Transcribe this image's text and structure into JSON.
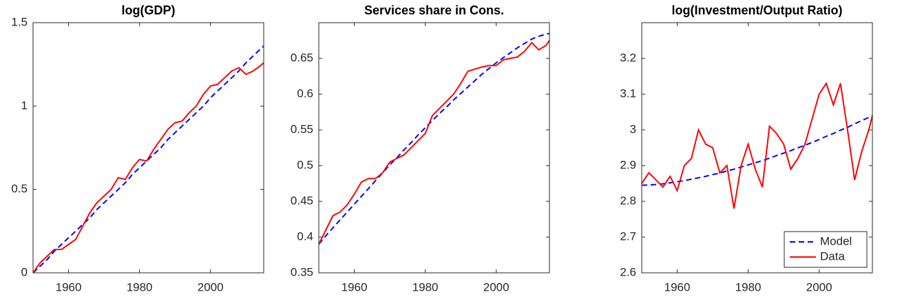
{
  "chart_data": [
    {
      "type": "line",
      "title": "log(GDP)",
      "x": [
        1950,
        1952,
        1954,
        1956,
        1958,
        1960,
        1962,
        1964,
        1966,
        1968,
        1970,
        1972,
        1974,
        1976,
        1978,
        1980,
        1982,
        1984,
        1986,
        1988,
        1990,
        1992,
        1994,
        1996,
        1998,
        2000,
        2002,
        2004,
        2006,
        2008,
        2010,
        2012,
        2014,
        2015
      ],
      "xlim": [
        1950,
        2015
      ],
      "xticks": [
        1960,
        1980,
        2000
      ],
      "ylim": [
        0,
        1.5
      ],
      "yticks": [
        0,
        0.5,
        1,
        1.5
      ],
      "series": [
        {
          "name": "Model",
          "color": "#0000ff",
          "line_style": "dashed",
          "values": [
            0,
            0.04,
            0.08,
            0.13,
            0.17,
            0.21,
            0.25,
            0.29,
            0.33,
            0.38,
            0.42,
            0.46,
            0.5,
            0.54,
            0.59,
            0.63,
            0.67,
            0.71,
            0.75,
            0.8,
            0.84,
            0.88,
            0.92,
            0.96,
            1.0,
            1.05,
            1.09,
            1.13,
            1.17,
            1.21,
            1.26,
            1.3,
            1.34,
            1.36
          ]
        },
        {
          "name": "Data",
          "color": "#ff0000",
          "line_style": "solid",
          "values": [
            0,
            0.06,
            0.1,
            0.14,
            0.14,
            0.17,
            0.2,
            0.28,
            0.36,
            0.42,
            0.46,
            0.5,
            0.57,
            0.56,
            0.63,
            0.68,
            0.67,
            0.74,
            0.8,
            0.86,
            0.9,
            0.91,
            0.96,
            1.0,
            1.07,
            1.12,
            1.13,
            1.17,
            1.21,
            1.23,
            1.19,
            1.21,
            1.24,
            1.26
          ]
        }
      ]
    },
    {
      "type": "line",
      "title": "Services share in Cons.",
      "x": [
        1950,
        1952,
        1954,
        1956,
        1958,
        1960,
        1962,
        1964,
        1966,
        1968,
        1970,
        1972,
        1974,
        1976,
        1978,
        1980,
        1982,
        1984,
        1986,
        1988,
        1990,
        1992,
        1994,
        1996,
        1998,
        2000,
        2002,
        2004,
        2006,
        2008,
        2010,
        2012,
        2014,
        2015
      ],
      "xlim": [
        1950,
        2015
      ],
      "xticks": [
        1960,
        1980,
        2000
      ],
      "ylim": [
        0.35,
        0.7
      ],
      "yticks": [
        0.35,
        0.4,
        0.45,
        0.5,
        0.55,
        0.6,
        0.65
      ],
      "series": [
        {
          "name": "Model",
          "color": "#0000ff",
          "line_style": "dashed",
          "values": [
            0.39,
            0.402,
            0.413,
            0.424,
            0.435,
            0.446,
            0.457,
            0.468,
            0.479,
            0.49,
            0.501,
            0.511,
            0.522,
            0.532,
            0.543,
            0.553,
            0.563,
            0.573,
            0.582,
            0.592,
            0.601,
            0.61,
            0.619,
            0.628,
            0.636,
            0.644,
            0.651,
            0.658,
            0.665,
            0.671,
            0.677,
            0.681,
            0.684,
            0.685
          ]
        },
        {
          "name": "Data",
          "color": "#ff0000",
          "line_style": "solid",
          "values": [
            0.39,
            0.41,
            0.43,
            0.435,
            0.445,
            0.46,
            0.477,
            0.482,
            0.482,
            0.49,
            0.505,
            0.51,
            0.515,
            0.525,
            0.535,
            0.545,
            0.57,
            0.58,
            0.59,
            0.6,
            0.615,
            0.632,
            0.635,
            0.638,
            0.64,
            0.64,
            0.648,
            0.65,
            0.652,
            0.66,
            0.672,
            0.662,
            0.668,
            0.675
          ]
        }
      ]
    },
    {
      "type": "line",
      "title": "log(Investment/Output Ratio)",
      "x": [
        1950,
        1952,
        1954,
        1956,
        1958,
        1960,
        1962,
        1964,
        1966,
        1968,
        1970,
        1972,
        1974,
        1976,
        1978,
        1980,
        1982,
        1984,
        1986,
        1988,
        1990,
        1992,
        1994,
        1996,
        1998,
        2000,
        2002,
        2004,
        2006,
        2008,
        2010,
        2012,
        2014,
        2015
      ],
      "xlim": [
        1950,
        2015
      ],
      "xticks": [
        1960,
        1980,
        2000
      ],
      "ylim": [
        2.6,
        3.3
      ],
      "yticks": [
        2.6,
        2.7,
        2.8,
        2.9,
        3,
        3.1,
        3.2
      ],
      "legend": "lower right",
      "series": [
        {
          "name": "Model",
          "color": "#0000ff",
          "line_style": "dashed",
          "values": [
            2.845,
            2.846,
            2.847,
            2.849,
            2.852,
            2.855,
            2.858,
            2.862,
            2.866,
            2.87,
            2.875,
            2.879,
            2.885,
            2.89,
            2.896,
            2.902,
            2.908,
            2.914,
            2.921,
            2.928,
            2.935,
            2.942,
            2.95,
            2.957,
            2.965,
            2.973,
            2.982,
            2.99,
            2.999,
            3.007,
            3.017,
            3.026,
            3.035,
            3.04
          ]
        },
        {
          "name": "Data",
          "color": "#ff0000",
          "line_style": "solid",
          "values": [
            2.85,
            2.88,
            2.86,
            2.84,
            2.87,
            2.83,
            2.9,
            2.92,
            3.0,
            2.96,
            2.95,
            2.88,
            2.9,
            2.78,
            2.9,
            2.96,
            2.89,
            2.84,
            3.01,
            2.99,
            2.96,
            2.89,
            2.92,
            2.96,
            3.03,
            3.1,
            3.13,
            3.07,
            3.13,
            3.0,
            2.86,
            2.94,
            3.0,
            3.04
          ]
        }
      ]
    }
  ]
}
